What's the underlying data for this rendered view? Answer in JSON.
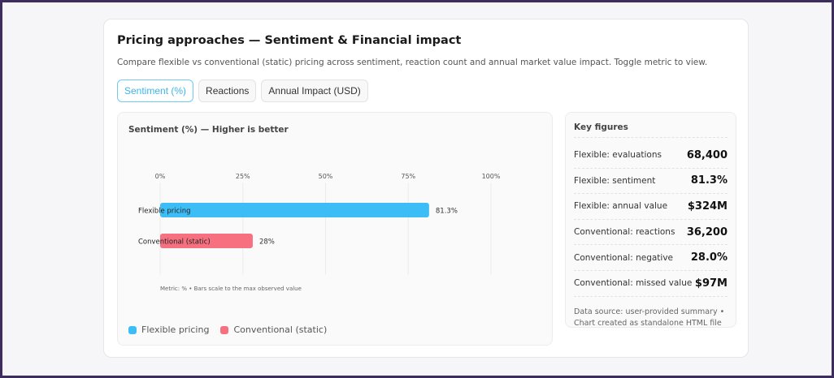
{
  "header": {
    "title": "Pricing approaches — Sentiment & Financial impact",
    "subtitle": "Compare flexible vs conventional (static) pricing across sentiment, reaction count and annual market value impact. Toggle metric to view."
  },
  "tabs": [
    {
      "label": "Sentiment (%)",
      "active": true
    },
    {
      "label": "Reactions",
      "active": false
    },
    {
      "label": "Annual Impact (USD)",
      "active": false
    }
  ],
  "chart_data": {
    "type": "bar",
    "orientation": "horizontal",
    "title": "Sentiment (%) — Higher is better",
    "categories": [
      "Flexible pricing",
      "Conventional (static)"
    ],
    "values": [
      81.3,
      28
    ],
    "value_labels": [
      "81.3%",
      "28%"
    ],
    "colors": [
      "#3dbdf5",
      "#f6707f"
    ],
    "xlim": [
      0,
      100
    ],
    "ticks": [
      "0%",
      "25%",
      "50%",
      "75%",
      "100%"
    ],
    "tick_values": [
      0,
      25,
      50,
      75,
      100
    ],
    "grid": true,
    "note": "Metric: % • Bars scale to the max observed value",
    "legend": [
      "Flexible pricing",
      "Conventional (static)"
    ],
    "legend_placement": "bottom-left"
  },
  "key_figures": {
    "title": "Key figures",
    "rows": [
      {
        "label": "Flexible: evaluations",
        "value": "68,400"
      },
      {
        "label": "Flexible: sentiment",
        "value": "81.3%"
      },
      {
        "label": "Flexible: annual value",
        "value": "$324M"
      },
      {
        "label": "Conventional: reactions",
        "value": "36,200"
      },
      {
        "label": "Conventional: negative",
        "value": "28.0%"
      },
      {
        "label": "Conventional: missed value",
        "value": "$97M"
      }
    ],
    "source": "Data source: user-provided summary • Chart created as standalone HTML file"
  }
}
